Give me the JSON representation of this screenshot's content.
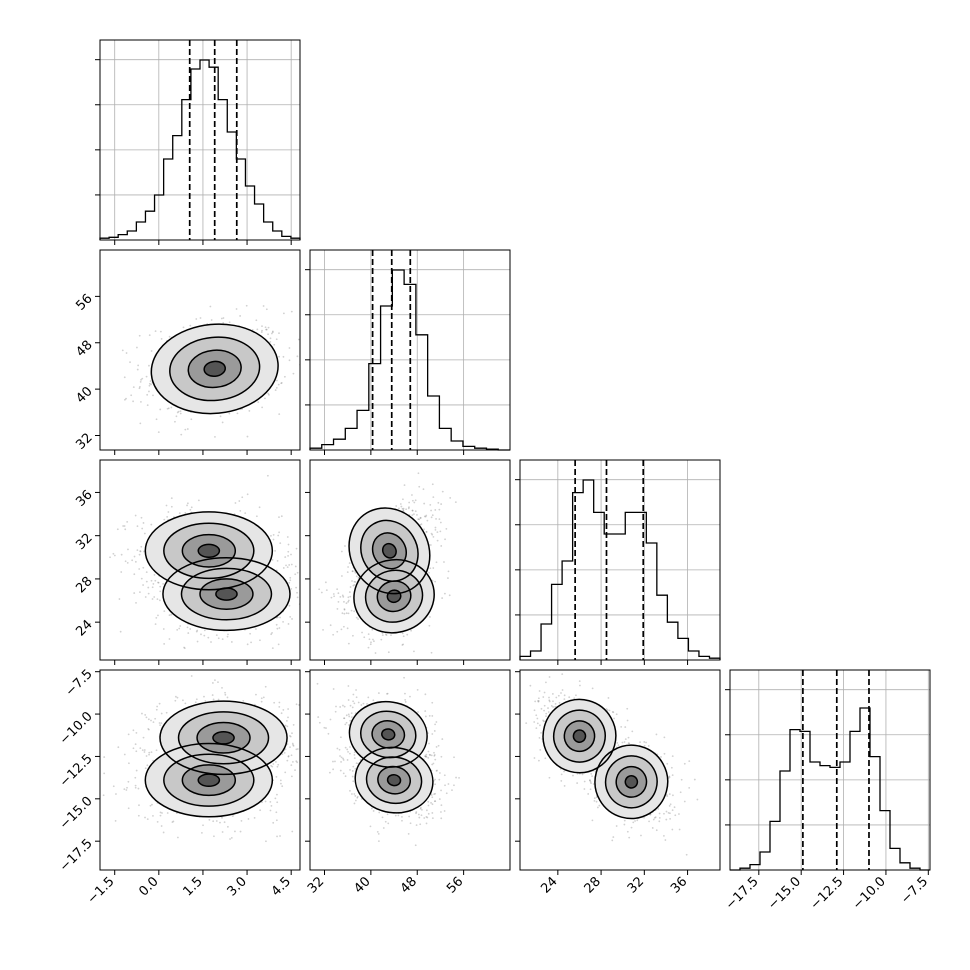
{
  "chart_data": {
    "type": "corner",
    "parameters": [
      {
        "range": [
          -2.0,
          4.8
        ],
        "ticks": [
          -1.5,
          0.0,
          1.5,
          3.0,
          4.5
        ],
        "tick_labels": [
          "−1.5",
          "0.0",
          "1.5",
          "3.0",
          "4.5"
        ],
        "quantiles": [
          1.05,
          1.9,
          2.65
        ]
      },
      {
        "range": [
          29.5,
          64.0
        ],
        "ticks": [
          32,
          40,
          48,
          56
        ],
        "tick_labels": [
          "32",
          "40",
          "48",
          "56"
        ],
        "quantiles": [
          40.3,
          43.6,
          46.8
        ]
      },
      {
        "range": [
          20.5,
          39.0
        ],
        "ticks": [
          24,
          28,
          32,
          36
        ],
        "tick_labels": [
          "24",
          "28",
          "32",
          "36"
        ],
        "quantiles": [
          25.6,
          28.5,
          31.9
        ]
      },
      {
        "range": [
          -19.2,
          -7.4
        ],
        "ticks": [
          -7.5,
          -10.0,
          -12.5,
          -15.0,
          -17.5
        ],
        "tick_labels": [
          "−7.5",
          "−10.0",
          "−12.5",
          "−15.0",
          "−17.5"
        ],
        "quantiles": [
          -14.9,
          -12.9,
          -11.0
        ]
      }
    ],
    "histograms": [
      {
        "edges_from": -2.0,
        "edges_to": 4.8,
        "counts": [
          0.01,
          0.015,
          0.03,
          0.05,
          0.1,
          0.16,
          0.25,
          0.45,
          0.58,
          0.78,
          0.95,
          1.0,
          0.96,
          0.78,
          0.6,
          0.45,
          0.3,
          0.2,
          0.1,
          0.05,
          0.02,
          0.01
        ]
      },
      {
        "edges_from": 29.5,
        "edges_to": 64.0,
        "counts": [
          0.01,
          0.03,
          0.06,
          0.12,
          0.22,
          0.48,
          0.8,
          1.0,
          0.92,
          0.64,
          0.3,
          0.12,
          0.05,
          0.02,
          0.01,
          0.005,
          0.0
        ]
      },
      {
        "edges_from": 20.5,
        "edges_to": 39.0,
        "counts": [
          0.02,
          0.05,
          0.2,
          0.42,
          0.55,
          0.93,
          1.0,
          0.82,
          0.7,
          0.7,
          0.82,
          0.82,
          0.65,
          0.36,
          0.21,
          0.12,
          0.05,
          0.02,
          0.01
        ]
      },
      {
        "edges_from": -19.2,
        "edges_to": -7.4,
        "counts": [
          0.0,
          0.01,
          0.03,
          0.1,
          0.27,
          0.55,
          0.78,
          0.77,
          0.6,
          0.58,
          0.57,
          0.6,
          0.77,
          0.9,
          0.63,
          0.33,
          0.12,
          0.04,
          0.01,
          0.0
        ]
      }
    ],
    "joint_2d": [
      {
        "row": 1,
        "col": 0,
        "modes": [
          [
            1.9,
            43.5,
            0.9,
            3.2,
            0.15,
            1.0
          ]
        ]
      },
      {
        "row": 2,
        "col": 0,
        "modes": [
          [
            1.7,
            30.6,
            0.9,
            1.5,
            0.0,
            1.0
          ],
          [
            2.3,
            26.6,
            0.9,
            1.4,
            0.0,
            1.0
          ]
        ]
      },
      {
        "row": 2,
        "col": 1,
        "modes": [
          [
            43.2,
            30.6,
            2.8,
            1.7,
            0.6,
            1.0
          ],
          [
            44.0,
            26.4,
            2.9,
            1.4,
            0.3,
            0.9
          ]
        ]
      },
      {
        "row": 3,
        "col": 0,
        "modes": [
          [
            2.2,
            -11.4,
            0.9,
            0.9,
            0.0,
            1.0
          ],
          [
            1.7,
            -13.9,
            0.9,
            0.9,
            0.0,
            1.0
          ]
        ]
      },
      {
        "row": 3,
        "col": 1,
        "modes": [
          [
            43.0,
            -11.2,
            2.8,
            0.8,
            -0.2,
            0.9
          ],
          [
            44.0,
            -13.9,
            2.8,
            0.8,
            -0.2,
            1.0
          ]
        ]
      },
      {
        "row": 3,
        "col": 2,
        "modes": [
          [
            26.0,
            -11.3,
            1.4,
            0.9,
            -0.3,
            1.0
          ],
          [
            30.8,
            -14.0,
            1.4,
            0.9,
            -0.3,
            1.0
          ]
        ]
      }
    ],
    "grid": true,
    "xlabel": "",
    "ylabel": ""
  }
}
